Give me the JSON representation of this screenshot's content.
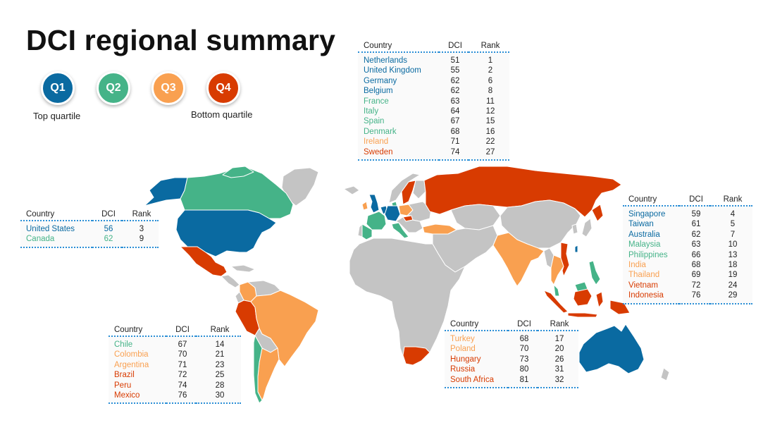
{
  "title": "DCI regional summary",
  "colors": {
    "Q1": "#0a6aa1",
    "Q2": "#45b388",
    "Q3": "#f9a050",
    "Q4": "#d83b01",
    "land": "#c4c4c4"
  },
  "legend": {
    "items": [
      {
        "label": "Q1",
        "color": "#0a6aa1"
      },
      {
        "label": "Q2",
        "color": "#45b388"
      },
      {
        "label": "Q3",
        "color": "#f9a050"
      },
      {
        "label": "Q4",
        "color": "#d83b01"
      }
    ],
    "top_label": "Top quartile",
    "bottom_label": "Bottom quartile"
  },
  "headers": {
    "country": "Country",
    "dci": "DCI",
    "rank": "Rank"
  },
  "tables": {
    "europe": [
      {
        "country": "Netherlands",
        "dci": "51",
        "rank": "1",
        "q": "Q1"
      },
      {
        "country": "United Kingdom",
        "dci": "55",
        "rank": "2",
        "q": "Q1"
      },
      {
        "country": "Germany",
        "dci": "62",
        "rank": "6",
        "q": "Q1"
      },
      {
        "country": "Belgium",
        "dci": "62",
        "rank": "8",
        "q": "Q1"
      },
      {
        "country": "France",
        "dci": "63",
        "rank": "11",
        "q": "Q2"
      },
      {
        "country": "Italy",
        "dci": "64",
        "rank": "12",
        "q": "Q2"
      },
      {
        "country": "Spain",
        "dci": "67",
        "rank": "15",
        "q": "Q2"
      },
      {
        "country": "Denmark",
        "dci": "68",
        "rank": "16",
        "q": "Q2"
      },
      {
        "country": "Ireland",
        "dci": "71",
        "rank": "22",
        "q": "Q3"
      },
      {
        "country": "Sweden",
        "dci": "74",
        "rank": "27",
        "q": "Q4"
      }
    ],
    "north_america": [
      {
        "country": "United States",
        "dci": "56",
        "rank": "3",
        "q": "Q1"
      },
      {
        "country": "Canada",
        "dci": "62",
        "rank": "9",
        "q": "Q2"
      }
    ],
    "latin_america": [
      {
        "country": "Chile",
        "dci": "67",
        "rank": "14",
        "q": "Q2"
      },
      {
        "country": "Colombia",
        "dci": "70",
        "rank": "21",
        "q": "Q3"
      },
      {
        "country": "Argentina",
        "dci": "71",
        "rank": "23",
        "q": "Q3"
      },
      {
        "country": "Brazil",
        "dci": "72",
        "rank": "25",
        "q": "Q4"
      },
      {
        "country": "Peru",
        "dci": "74",
        "rank": "28",
        "q": "Q4"
      },
      {
        "country": "Mexico",
        "dci": "76",
        "rank": "30",
        "q": "Q4"
      }
    ],
    "emea_other": [
      {
        "country": "Turkey",
        "dci": "68",
        "rank": "17",
        "q": "Q3"
      },
      {
        "country": "Poland",
        "dci": "70",
        "rank": "20",
        "q": "Q3"
      },
      {
        "country": "Hungary",
        "dci": "73",
        "rank": "26",
        "q": "Q4"
      },
      {
        "country": "Russia",
        "dci": "80",
        "rank": "31",
        "q": "Q4"
      },
      {
        "country": "South Africa",
        "dci": "81",
        "rank": "32",
        "q": "Q4"
      }
    ],
    "asia_pacific": [
      {
        "country": "Singapore",
        "dci": "59",
        "rank": "4",
        "q": "Q1"
      },
      {
        "country": "Taiwan",
        "dci": "61",
        "rank": "5",
        "q": "Q1"
      },
      {
        "country": "Australia",
        "dci": "62",
        "rank": "7",
        "q": "Q1"
      },
      {
        "country": "Malaysia",
        "dci": "63",
        "rank": "10",
        "q": "Q2"
      },
      {
        "country": "Philippines",
        "dci": "66",
        "rank": "13",
        "q": "Q2"
      },
      {
        "country": "India",
        "dci": "68",
        "rank": "18",
        "q": "Q3"
      },
      {
        "country": "Thailand",
        "dci": "69",
        "rank": "19",
        "q": "Q3"
      },
      {
        "country": "Vietnam",
        "dci": "72",
        "rank": "24",
        "q": "Q4"
      },
      {
        "country": "Indonesia",
        "dci": "76",
        "rank": "29",
        "q": "Q4"
      }
    ]
  }
}
